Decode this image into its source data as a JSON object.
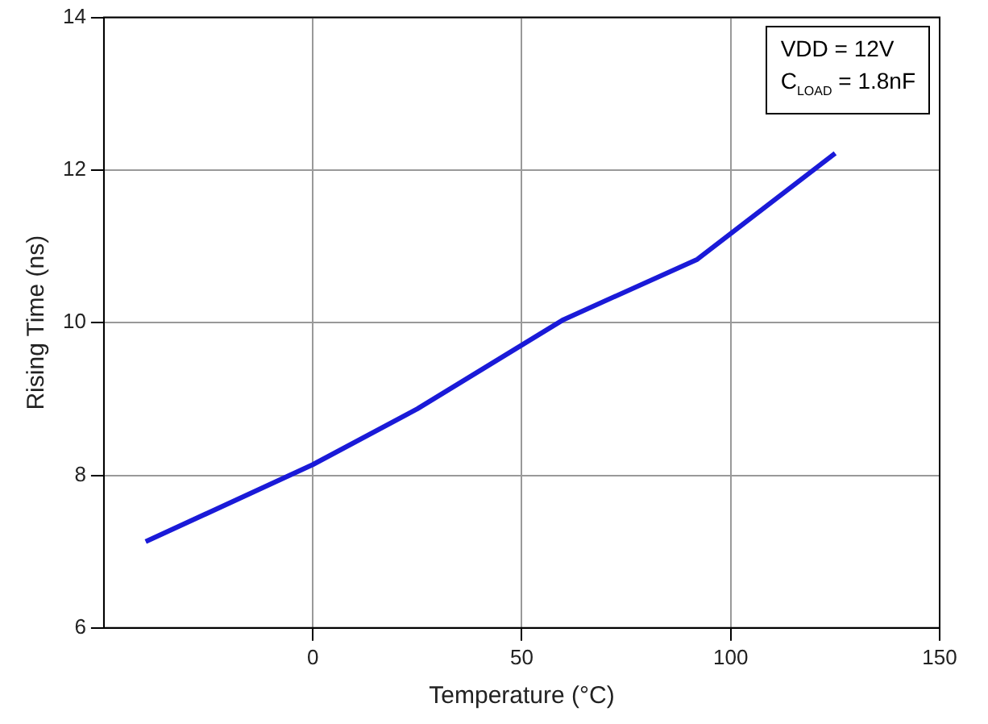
{
  "chart_data": {
    "type": "line",
    "xlabel": "Temperature (°C)",
    "ylabel": "Rising Time (ns)",
    "x": [
      -40,
      0,
      25,
      60,
      92,
      125
    ],
    "series": [
      {
        "color": "#1a1ad8",
        "values": [
          7.13,
          8.14,
          8.87,
          10.04,
          10.83,
          12.22
        ]
      }
    ],
    "xlim": [
      -50,
      150
    ],
    "xticks": [
      0,
      50,
      100,
      150
    ],
    "ylim": [
      6,
      14
    ],
    "yticks": [
      6,
      8,
      10,
      12,
      14
    ],
    "grid": true,
    "legend": false,
    "marker": "none",
    "line_style": "solid",
    "annotations": [
      "VDD = 12V",
      "C$_{LOAD}$ = 1.8nF"
    ]
  }
}
